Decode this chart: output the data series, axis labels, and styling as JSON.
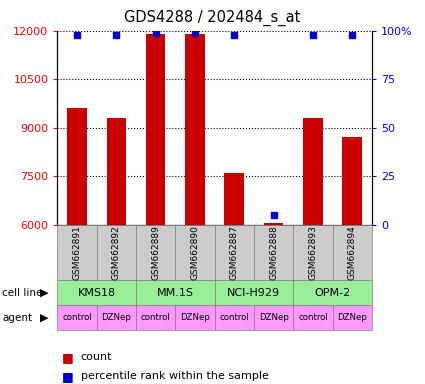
{
  "title": "GDS4288 / 202484_s_at",
  "samples": [
    "GSM662891",
    "GSM662892",
    "GSM662889",
    "GSM662890",
    "GSM662887",
    "GSM662888",
    "GSM662893",
    "GSM662894"
  ],
  "counts": [
    9600,
    9300,
    11900,
    11900,
    7600,
    6050,
    9300,
    8700
  ],
  "percentile_ranks": [
    98,
    98,
    99,
    99,
    98,
    5,
    98,
    98
  ],
  "cell_lines": [
    {
      "label": "KMS18",
      "start": 0,
      "end": 2
    },
    {
      "label": "MM.1S",
      "start": 2,
      "end": 4
    },
    {
      "label": "NCI-H929",
      "start": 4,
      "end": 6
    },
    {
      "label": "OPM-2",
      "start": 6,
      "end": 8
    }
  ],
  "agents": [
    "control",
    "DZNep",
    "control",
    "DZNep",
    "control",
    "DZNep",
    "control",
    "DZNep"
  ],
  "ylim_left": [
    6000,
    12000
  ],
  "yticks_left": [
    6000,
    7500,
    9000,
    10500,
    12000
  ],
  "yticks_right": [
    0,
    25,
    50,
    75,
    100
  ],
  "bar_color": "#cc0000",
  "dot_color": "#0000cc",
  "cell_line_color": "#99ee99",
  "agent_color": "#ff99ff",
  "sample_box_color": "#cccccc",
  "background_color": "#ffffff",
  "count_label": "count",
  "percentile_label": "percentile rank within the sample"
}
